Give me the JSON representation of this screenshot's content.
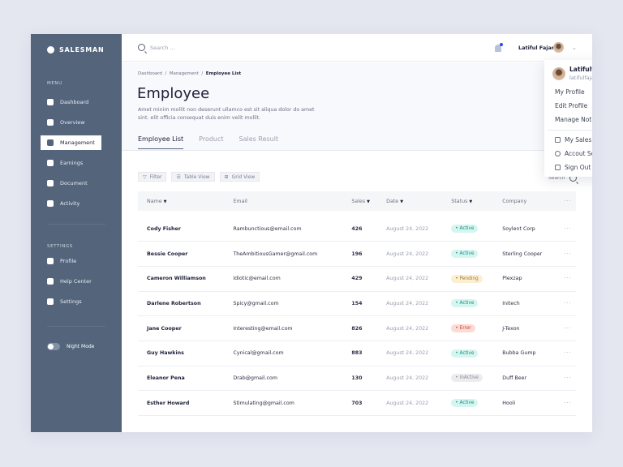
{
  "brand": "SALESMAN",
  "sidebar": {
    "menu_label": "MENU",
    "items": [
      {
        "label": "Dashboard",
        "icon": "grid-icon"
      },
      {
        "label": "Overview",
        "icon": "compass-icon"
      },
      {
        "label": "Management",
        "icon": "users-icon",
        "active": true
      },
      {
        "label": "Earnings",
        "icon": "chart-icon"
      },
      {
        "label": "Document",
        "icon": "folder-icon"
      },
      {
        "label": "Activity",
        "icon": "bar-chart-icon"
      }
    ],
    "settings_label": "SETTINGS",
    "settings_items": [
      {
        "label": "Profile",
        "icon": "user-icon"
      },
      {
        "label": "Help Center",
        "icon": "phone-icon"
      },
      {
        "label": "Settings",
        "icon": "gear-icon"
      }
    ],
    "night_mode": {
      "label": "Night Mode",
      "on": false
    }
  },
  "topbar": {
    "search_placeholder": "Search ...",
    "user_name": "Latiful Fajar"
  },
  "breadcrumb": [
    "Dashboard",
    "Management",
    "Employee List"
  ],
  "page": {
    "title": "Employee",
    "description": "Amet minim mollit non deserunt ullamco est sit aliqua dolor do amet sint. elit officia consequat duis enim velit mollit."
  },
  "tabs": [
    "Employee List",
    "Product",
    "Sales Result"
  ],
  "toolbar": {
    "filter": "Filter",
    "table_view": "Table View",
    "grid_view": "Grid View",
    "search": "Search"
  },
  "table": {
    "headers": [
      "Name",
      "Email",
      "Sales",
      "Date",
      "Status",
      "Company"
    ],
    "rows": [
      [
        "Cody Fisher",
        "Rambunctious@email.com",
        "426",
        "August 24, 2022",
        "Active",
        "Soylent Corp"
      ],
      [
        "Bessie Cooper",
        "TheAmbitiousGamer@gmail.com",
        "196",
        "August 24, 2022",
        "Active",
        "Sterling Cooper"
      ],
      [
        "Cameron Williamson",
        "Idiotic@email.com",
        "429",
        "August 24, 2022",
        "Pending",
        "Plexzap"
      ],
      [
        "Darlene Robertson",
        "Spicy@gmail.com",
        "154",
        "August 24, 2022",
        "Active",
        "Initech"
      ],
      [
        "Jane Cooper",
        "Interesting@email.com",
        "826",
        "August 24, 2022",
        "Error",
        "J-Texon"
      ],
      [
        "Guy Hawkins",
        "Cynical@gmail.com",
        "883",
        "August 24, 2022",
        "Active",
        "Bubba Gump"
      ],
      [
        "Eleanor Pena",
        "Drab@gmail.com",
        "130",
        "August 24, 2022",
        "InActive",
        "Duff Beer"
      ],
      [
        "Esther Howard",
        "Stimulating@gmail.com",
        "703",
        "August 24, 2022",
        "Active",
        "Hooli"
      ]
    ]
  },
  "status_colors": {
    "Active": {
      "bg": "#d4f6f1",
      "fg": "#1f8f7e"
    },
    "Pending": {
      "bg": "#fbefd2",
      "fg": "#a9782a"
    },
    "Error": {
      "bg": "#fadbd5",
      "fg": "#c9463a"
    },
    "InActive": {
      "bg": "#ececee",
      "fg": "#8a8d98"
    }
  },
  "dropdown": {
    "name": "Latifulfajar",
    "email": "latifulfajar83@gmail.com",
    "items": [
      "My Profile",
      "Edit Profile",
      "Manage Notification"
    ],
    "items2": [
      {
        "label": "My Sales",
        "icon": "sales-icon"
      },
      {
        "label": "Accout Settings",
        "icon": "user-icon"
      },
      {
        "label": "Sign Out",
        "icon": "sign-out-icon"
      }
    ]
  },
  "colors": {
    "sidebar": "#53647b",
    "accent": "#53647b",
    "notification": "#2f4bf0"
  }
}
